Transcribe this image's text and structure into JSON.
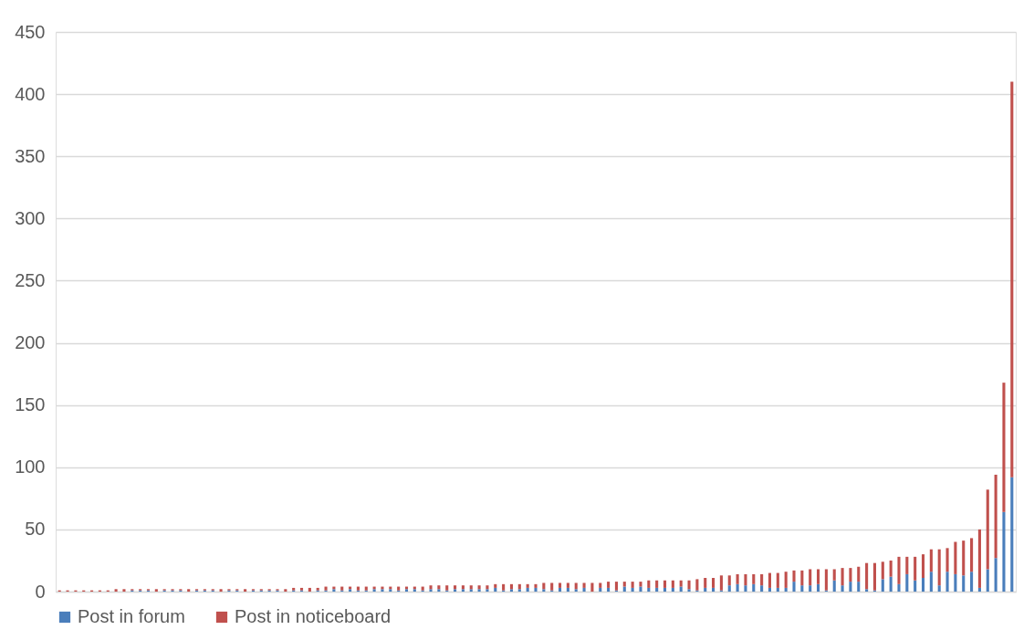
{
  "chart_data": {
    "type": "bar",
    "stacked": true,
    "categories": [
      null,
      null,
      null,
      null,
      null,
      null,
      null,
      null,
      null,
      null,
      null,
      null,
      null,
      null,
      null,
      null,
      null,
      null,
      null,
      null,
      null,
      null,
      null,
      null,
      null,
      null,
      null,
      null,
      null,
      null,
      null,
      null,
      null,
      null,
      null,
      null,
      null,
      null,
      null,
      null,
      null,
      null,
      null,
      null,
      null,
      null,
      null,
      null,
      null,
      null,
      null,
      null,
      null,
      null,
      null,
      null,
      null,
      null,
      null,
      null,
      null,
      null,
      null,
      null,
      null,
      null,
      null,
      null,
      null,
      null,
      null,
      null,
      null,
      null,
      null,
      null,
      null,
      null,
      null,
      null,
      null,
      null,
      null,
      null,
      null,
      null,
      null,
      null,
      null,
      null,
      null,
      null,
      null,
      null,
      null,
      null,
      null,
      null,
      null,
      null,
      null,
      null,
      null,
      null,
      null,
      null,
      null,
      null,
      null,
      null,
      null,
      null,
      null,
      null,
      null,
      null,
      null,
      null,
      null
    ],
    "series": [
      {
        "name": "Post in forum",
        "color": "#4a7ebb",
        "values": [
          0,
          0,
          0,
          0,
          0,
          0,
          0,
          0,
          0,
          1,
          1,
          1,
          0,
          1,
          1,
          1,
          0,
          1,
          1,
          1,
          0,
          1,
          1,
          0,
          1,
          1,
          1,
          1,
          0,
          1,
          1,
          0,
          1,
          1,
          2,
          1,
          2,
          1,
          1,
          2,
          2,
          2,
          1,
          2,
          2,
          1,
          2,
          2,
          1,
          2,
          2,
          2,
          2,
          2,
          3,
          1,
          2,
          2,
          3,
          3,
          2,
          1,
          3,
          3,
          2,
          3,
          0,
          3,
          3,
          1,
          4,
          3,
          4,
          3,
          3,
          3,
          3,
          4,
          2,
          1,
          3,
          3,
          1,
          5,
          6,
          5,
          6,
          5,
          3,
          3,
          3,
          8,
          5,
          5,
          6,
          1,
          9,
          5,
          8,
          8,
          2,
          1,
          10,
          12,
          6,
          14,
          9,
          11,
          16,
          5,
          16,
          14,
          13,
          16,
          3,
          18,
          27,
          64,
          92
        ]
      },
      {
        "name": "Post in noticeboard",
        "color": "#c0504d",
        "values": [
          1,
          1,
          1,
          1,
          1,
          1,
          1,
          2,
          2,
          1,
          1,
          1,
          2,
          1,
          1,
          1,
          2,
          1,
          1,
          1,
          2,
          1,
          1,
          2,
          1,
          1,
          1,
          1,
          2,
          2,
          2,
          3,
          2,
          3,
          2,
          3,
          2,
          3,
          3,
          2,
          2,
          2,
          3,
          2,
          2,
          3,
          3,
          3,
          4,
          3,
          3,
          3,
          3,
          3,
          3,
          5,
          4,
          4,
          3,
          3,
          5,
          6,
          4,
          4,
          5,
          4,
          7,
          4,
          5,
          7,
          4,
          5,
          4,
          6,
          6,
          6,
          6,
          5,
          7,
          9,
          8,
          8,
          12,
          8,
          8,
          9,
          8,
          9,
          12,
          12,
          13,
          9,
          12,
          13,
          12,
          17,
          9,
          14,
          11,
          12,
          21,
          22,
          14,
          13,
          22,
          14,
          19,
          19,
          18,
          29,
          19,
          26,
          28,
          27,
          47,
          64,
          67,
          104,
          318
        ]
      }
    ],
    "ylim": [
      0,
      450
    ],
    "yticks": [
      0,
      50,
      100,
      150,
      200,
      250,
      300,
      350,
      400,
      450
    ],
    "grid": "y",
    "legend": "bottom",
    "tick_labels": "y"
  }
}
